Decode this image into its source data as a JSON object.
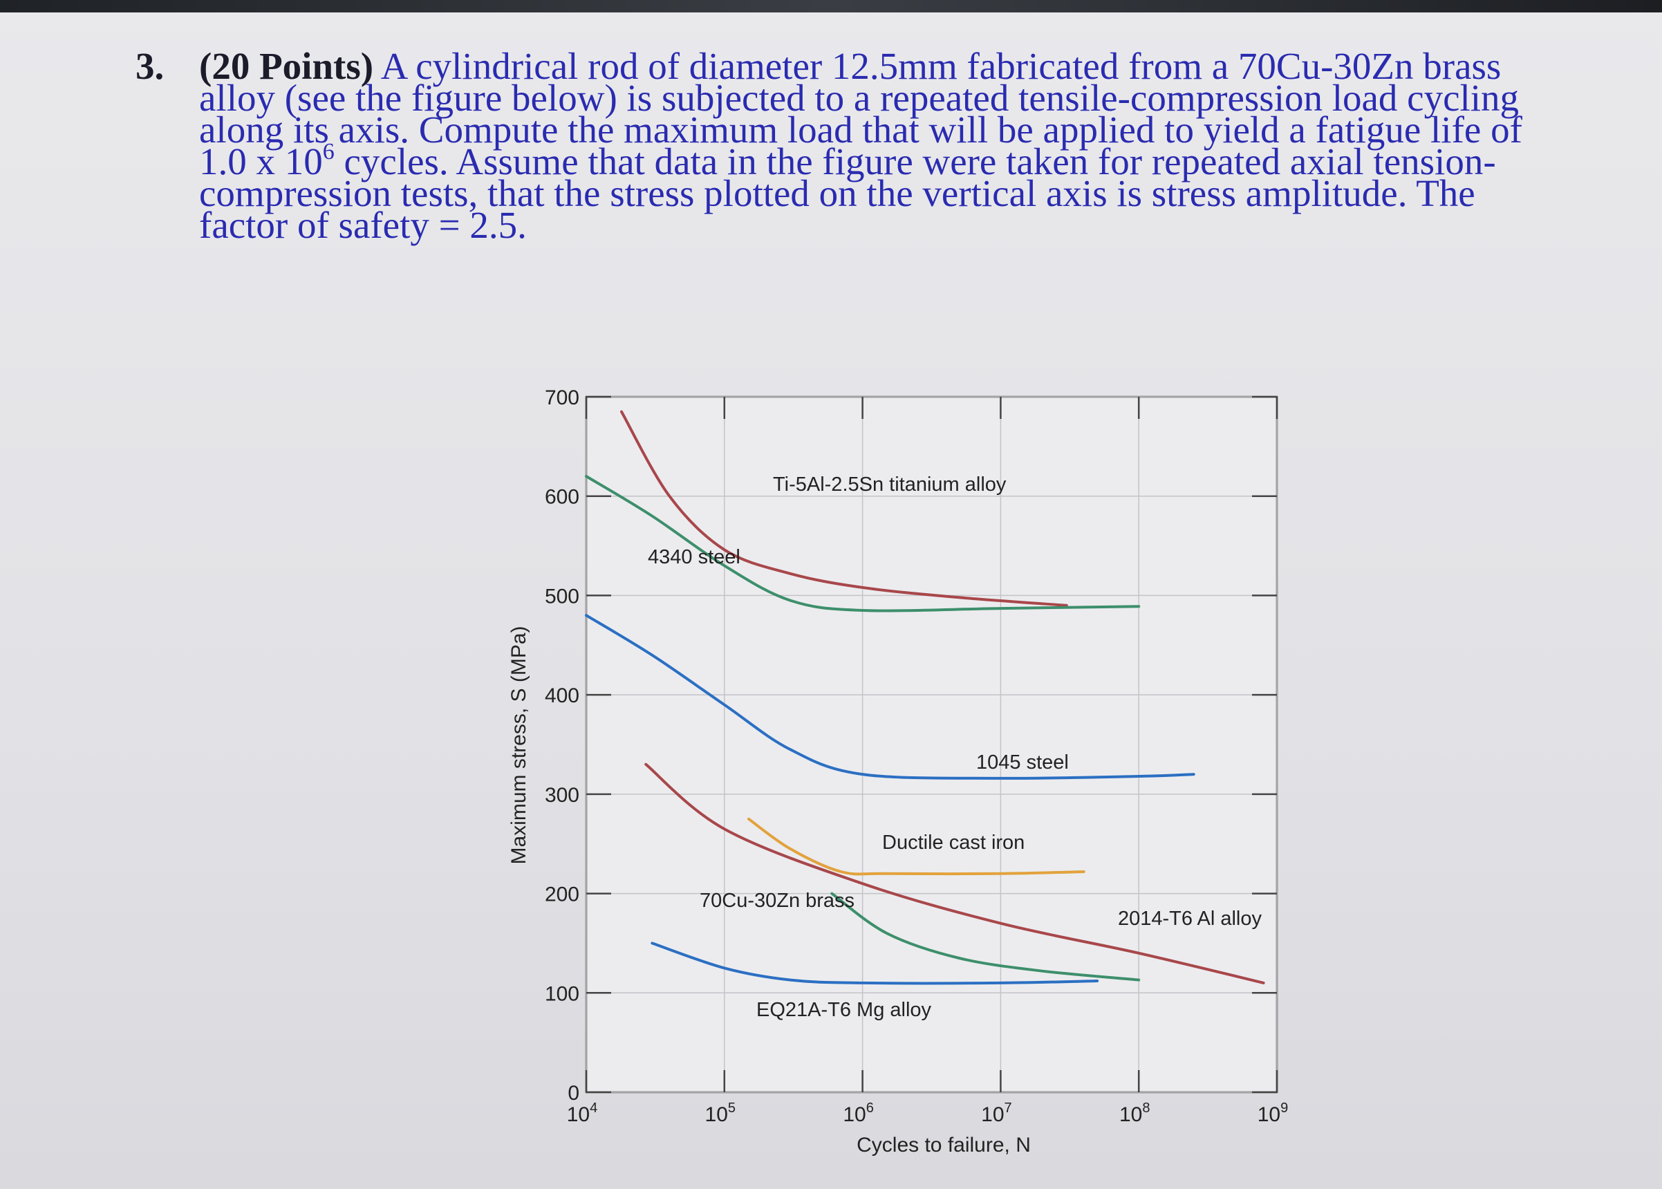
{
  "problem": {
    "number": "3.",
    "points": "(20 Points)",
    "line1": "A cylindrical rod of diameter 12.5mm fabricated from a 70Cu-30Zn brass",
    "line2": "alloy (see the figure below) is subjected to a repeated tensile-compression load cycling",
    "line3": "along its axis. Compute the maximum load that will be applied to yield a fatigue life of",
    "line4_base": "1.0 x 10",
    "line4_exp": "6",
    "line4_rest": " cycles. Assume that data in the figure were taken for repeated axial tension-",
    "line5": "compression tests, that the stress plotted on the vertical axis is stress amplitude. The",
    "line6": "factor of safety = 2.5."
  },
  "chart_data": {
    "type": "line",
    "title": "",
    "xlabel": "Cycles to failure, N",
    "ylabel": "Maximum stress, S (MPa)",
    "xscale": "log",
    "xlim": [
      10000,
      1000000000
    ],
    "ylim": [
      0,
      700
    ],
    "x_ticks": [
      {
        "base": "10",
        "exp": "4",
        "value": 10000
      },
      {
        "base": "10",
        "exp": "5",
        "value": 100000
      },
      {
        "base": "10",
        "exp": "6",
        "value": 1000000
      },
      {
        "base": "10",
        "exp": "7",
        "value": 10000000
      },
      {
        "base": "10",
        "exp": "8",
        "value": 100000000
      },
      {
        "base": "10",
        "exp": "9",
        "value": 1000000000
      }
    ],
    "y_ticks": [
      "0",
      "100",
      "200",
      "300",
      "400",
      "500",
      "600",
      "700"
    ],
    "y_tick_values": [
      0,
      100,
      200,
      300,
      400,
      500,
      600,
      700
    ],
    "grid": true,
    "series": [
      {
        "name": "Ti-5Al-2.5Sn titanium alloy",
        "color": "#a8474a",
        "points": [
          [
            18000,
            685
          ],
          [
            40000,
            600
          ],
          [
            100000,
            546
          ],
          [
            300000,
            522
          ],
          [
            1000000,
            508
          ],
          [
            5000000,
            498
          ],
          [
            30000000,
            490
          ]
        ]
      },
      {
        "name": "4340 steel",
        "color": "#3d8f6b",
        "points": [
          [
            10000,
            620
          ],
          [
            30000,
            580
          ],
          [
            100000,
            530
          ],
          [
            300000,
            495
          ],
          [
            1000000,
            485
          ],
          [
            10000000,
            487
          ],
          [
            100000000,
            489
          ]
        ]
      },
      {
        "name": "1045 steel",
        "color": "#2b6fc3",
        "points": [
          [
            10000,
            480
          ],
          [
            30000,
            440
          ],
          [
            100000,
            390
          ],
          [
            300000,
            345
          ],
          [
            1000000,
            320
          ],
          [
            10000000,
            316
          ],
          [
            100000000,
            318
          ],
          [
            250000000,
            320
          ]
        ]
      },
      {
        "name": "Ductile cast iron",
        "color": "#e2a23c",
        "points": [
          [
            150000,
            275
          ],
          [
            300000,
            245
          ],
          [
            700000,
            222
          ],
          [
            1500000,
            220
          ],
          [
            10000000,
            220
          ],
          [
            40000000,
            222
          ]
        ]
      },
      {
        "name": "2014-T6 Al alloy",
        "color": "#a8474a",
        "points": [
          [
            27000,
            330
          ],
          [
            100000,
            265
          ],
          [
            1000000,
            210
          ],
          [
            10000000,
            170
          ],
          [
            100000000,
            140
          ],
          [
            800000000,
            110
          ]
        ]
      },
      {
        "name": "70Cu-30Zn brass",
        "color": "#3d8f6b",
        "points": [
          [
            600000,
            200
          ],
          [
            1500000,
            160
          ],
          [
            5000000,
            135
          ],
          [
            20000000,
            122
          ],
          [
            100000000,
            113
          ]
        ]
      },
      {
        "name": "EQ21A-T6 Mg alloy",
        "color": "#2b6fc3",
        "points": [
          [
            30000,
            150
          ],
          [
            100000,
            125
          ],
          [
            300000,
            113
          ],
          [
            1000000,
            110
          ],
          [
            10000000,
            110
          ],
          [
            50000000,
            112
          ]
        ]
      }
    ],
    "annotations": {
      "ti": "Ti-5Al-2.5Sn titanium alloy",
      "s4340": "4340 steel",
      "s1045": "1045 steel",
      "cast_iron": "Ductile cast iron",
      "al2014": "2014-T6 Al alloy",
      "brass": "70Cu-30Zn brass",
      "mg": "EQ21A-T6 Mg alloy"
    }
  }
}
